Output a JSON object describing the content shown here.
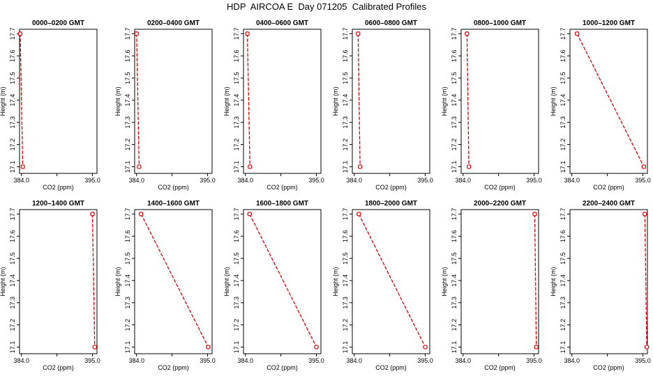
{
  "page": {
    "title": "HDP  AIRCOA E  Day 071205  Calibrated Profiles"
  },
  "colors": {
    "series": "#e00000",
    "axis": "#000000"
  },
  "chart_data": [
    {
      "type": "line",
      "title": "0000–0200 GMT",
      "xlabel": "CO2 (ppm)",
      "ylabel": "Height (m)",
      "xlim": [
        383.7,
        395.7
      ],
      "ylim": [
        17.07,
        17.72
      ],
      "xticks": [
        "384.0",
        "395.0"
      ],
      "yticks": [
        "17.1",
        "17.2",
        "17.3",
        "17.4",
        "17.5",
        "17.6",
        "17.7"
      ],
      "grid": false,
      "series": [
        {
          "x": [
            383.8,
            384.2
          ],
          "y": [
            17.7,
            17.1
          ]
        }
      ]
    },
    {
      "type": "line",
      "title": "0200–0400 GMT",
      "xlabel": "CO2 (ppm)",
      "ylabel": "Height (m)",
      "xlim": [
        383.7,
        395.7
      ],
      "ylim": [
        17.07,
        17.72
      ],
      "xticks": [
        "384.0",
        "395.0"
      ],
      "yticks": [
        "17.1",
        "17.2",
        "17.3",
        "17.4",
        "17.5",
        "17.6",
        "17.7"
      ],
      "grid": false,
      "series": [
        {
          "x": [
            384.0,
            384.4
          ],
          "y": [
            17.7,
            17.1
          ]
        }
      ]
    },
    {
      "type": "line",
      "title": "0400–0600 GMT",
      "xlabel": "CO2 (ppm)",
      "ylabel": "Height (m)",
      "xlim": [
        383.7,
        395.7
      ],
      "ylim": [
        17.07,
        17.72
      ],
      "xticks": [
        "384.0",
        "395.0"
      ],
      "yticks": [
        "17.1",
        "17.2",
        "17.3",
        "17.4",
        "17.5",
        "17.6",
        "17.7"
      ],
      "grid": false,
      "series": [
        {
          "x": [
            384.3,
            384.7
          ],
          "y": [
            17.7,
            17.1
          ]
        }
      ]
    },
    {
      "type": "line",
      "title": "0600–0800 GMT",
      "xlabel": "CO2 (ppm)",
      "ylabel": "Height (m)",
      "xlim": [
        383.7,
        395.7
      ],
      "ylim": [
        17.07,
        17.72
      ],
      "xticks": [
        "384.0",
        "395.0"
      ],
      "yticks": [
        "17.1",
        "17.2",
        "17.3",
        "17.4",
        "17.5",
        "17.6",
        "17.7"
      ],
      "grid": false,
      "series": [
        {
          "x": [
            384.6,
            384.9
          ],
          "y": [
            17.7,
            17.1
          ]
        }
      ]
    },
    {
      "type": "line",
      "title": "0800–1000 GMT",
      "xlabel": "CO2 (ppm)",
      "ylabel": "Height (m)",
      "xlim": [
        383.7,
        395.7
      ],
      "ylim": [
        17.07,
        17.72
      ],
      "xticks": [
        "384.0",
        "395.0"
      ],
      "yticks": [
        "17.1",
        "17.2",
        "17.3",
        "17.4",
        "17.5",
        "17.6",
        "17.7"
      ],
      "grid": false,
      "series": [
        {
          "x": [
            384.6,
            384.9
          ],
          "y": [
            17.7,
            17.1
          ]
        }
      ]
    },
    {
      "type": "line",
      "title": "1000–1200 GMT",
      "xlabel": "CO2 (ppm)",
      "ylabel": "Height (m)",
      "xlim": [
        383.7,
        395.7
      ],
      "ylim": [
        17.07,
        17.72
      ],
      "xticks": [
        "384.0",
        "395.0"
      ],
      "yticks": [
        "17.1",
        "17.2",
        "17.3",
        "17.4",
        "17.5",
        "17.6",
        "17.7"
      ],
      "grid": false,
      "series": [
        {
          "x": [
            384.8,
            395.15
          ],
          "y": [
            17.7,
            17.1
          ]
        }
      ]
    },
    {
      "type": "line",
      "title": "1200–1400 GMT",
      "xlabel": "CO2 (ppm)",
      "ylabel": "Height (m)",
      "xlim": [
        383.7,
        395.7
      ],
      "ylim": [
        17.07,
        17.72
      ],
      "xticks": [
        "384.0",
        "395.0"
      ],
      "yticks": [
        "17.1",
        "17.2",
        "17.3",
        "17.4",
        "17.5",
        "17.6",
        "17.7"
      ],
      "grid": false,
      "series": [
        {
          "x": [
            395.0,
            395.35
          ],
          "y": [
            17.7,
            17.1
          ]
        }
      ]
    },
    {
      "type": "line",
      "title": "1400–1600 GMT",
      "xlabel": "CO2 (ppm)",
      "ylabel": "Height (m)",
      "xlim": [
        383.7,
        395.7
      ],
      "ylim": [
        17.07,
        17.72
      ],
      "xticks": [
        "384.0",
        "395.0"
      ],
      "yticks": [
        "17.1",
        "17.2",
        "17.3",
        "17.4",
        "17.5",
        "17.6",
        "17.7"
      ],
      "grid": false,
      "series": [
        {
          "x": [
            384.7,
            395.1
          ],
          "y": [
            17.7,
            17.1
          ]
        }
      ]
    },
    {
      "type": "line",
      "title": "1600–1800 GMT",
      "xlabel": "CO2 (ppm)",
      "ylabel": "Height (m)",
      "xlim": [
        383.7,
        395.7
      ],
      "ylim": [
        17.07,
        17.72
      ],
      "xticks": [
        "384.0",
        "395.0"
      ],
      "yticks": [
        "17.1",
        "17.2",
        "17.3",
        "17.4",
        "17.5",
        "17.6",
        "17.7"
      ],
      "grid": false,
      "series": [
        {
          "x": [
            384.65,
            395.0
          ],
          "y": [
            17.7,
            17.1
          ]
        }
      ]
    },
    {
      "type": "line",
      "title": "1800–2000 GMT",
      "xlabel": "CO2 (ppm)",
      "ylabel": "Height (m)",
      "xlim": [
        383.7,
        395.7
      ],
      "ylim": [
        17.07,
        17.72
      ],
      "xticks": [
        "384.0",
        "395.0"
      ],
      "yticks": [
        "17.1",
        "17.2",
        "17.3",
        "17.4",
        "17.5",
        "17.6",
        "17.7"
      ],
      "grid": false,
      "series": [
        {
          "x": [
            384.7,
            395.0
          ],
          "y": [
            17.7,
            17.1
          ]
        }
      ]
    },
    {
      "type": "line",
      "title": "2000–2200 GMT",
      "xlabel": "CO2 (ppm)",
      "ylabel": "Height (m)",
      "xlim": [
        383.7,
        395.7
      ],
      "ylim": [
        17.07,
        17.72
      ],
      "xticks": [
        "384.0",
        "395.0"
      ],
      "yticks": [
        "17.1",
        "17.2",
        "17.3",
        "17.4",
        "17.5",
        "17.6",
        "17.7"
      ],
      "grid": false,
      "series": [
        {
          "x": [
            395.1,
            395.35
          ],
          "y": [
            17.7,
            17.1
          ]
        }
      ]
    },
    {
      "type": "line",
      "title": "2200–2400 GMT",
      "xlabel": "CO2 (ppm)",
      "ylabel": "Height (m)",
      "xlim": [
        383.7,
        395.7
      ],
      "ylim": [
        17.07,
        17.72
      ],
      "xticks": [
        "384.0",
        "395.0"
      ],
      "yticks": [
        "17.1",
        "17.2",
        "17.3",
        "17.4",
        "17.5",
        "17.6",
        "17.7"
      ],
      "grid": false,
      "series": [
        {
          "x": [
            395.3,
            395.6
          ],
          "y": [
            17.7,
            17.1
          ]
        }
      ]
    }
  ]
}
